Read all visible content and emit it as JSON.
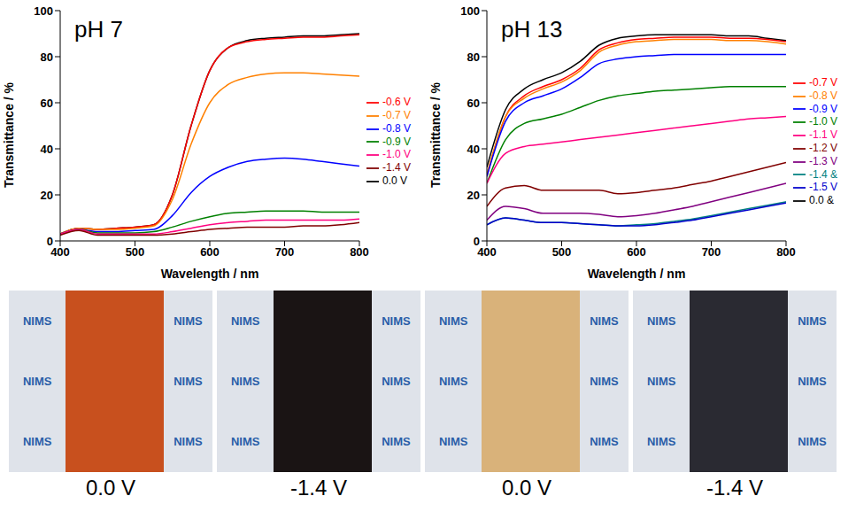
{
  "chart_data": [
    {
      "type": "line",
      "title": "pH 7",
      "x_label": "Wavelength / nm",
      "y_label": "Transmittance / %",
      "x": [
        400,
        425,
        450,
        475,
        500,
        525,
        550,
        575,
        600,
        625,
        650,
        675,
        700,
        725,
        750,
        775,
        800
      ],
      "xlim": [
        400,
        800
      ],
      "xticks": [
        400,
        500,
        600,
        700,
        800
      ],
      "ylim": [
        0,
        100
      ],
      "yticks": [
        0,
        20,
        40,
        60,
        80,
        100
      ],
      "grid": false,
      "legend": "right",
      "series": [
        {
          "name": "0.0 V",
          "color": "#000000",
          "values": [
            3,
            5.5,
            5,
            5.5,
            6,
            7,
            20,
            50,
            74,
            84,
            87,
            88,
            88.5,
            89,
            89,
            89.5,
            90
          ]
        },
        {
          "name": "-0.6 V",
          "color": "#ff0000",
          "values": [
            3,
            5.5,
            5,
            5.5,
            6,
            7,
            20,
            50,
            74,
            84,
            86.5,
            87.5,
            88,
            88.5,
            88.5,
            89,
            89.5
          ]
        },
        {
          "name": "-0.7 V",
          "color": "#ff8000",
          "values": [
            3,
            5.5,
            5,
            5,
            5.5,
            6.5,
            18,
            42,
            60,
            68,
            71,
            72.5,
            73,
            73,
            72.5,
            72,
            71.5
          ]
        },
        {
          "name": "-0.8 V",
          "color": "#0000ff",
          "values": [
            3,
            5,
            4,
            4,
            4.5,
            5,
            11,
            21,
            28,
            32,
            34.5,
            35.5,
            36,
            35.5,
            34.5,
            33.5,
            32.5
          ]
        },
        {
          "name": "-0.9 V",
          "color": "#008000",
          "values": [
            3,
            5,
            3.5,
            3.5,
            3.5,
            4,
            6,
            8.5,
            10.5,
            12,
            12.5,
            13,
            13,
            13,
            12.5,
            12.5,
            12.5
          ]
        },
        {
          "name": "-1.0 V",
          "color": "#ff0080",
          "values": [
            3,
            5,
            3,
            3,
            3,
            3,
            4,
            5.5,
            7,
            8,
            8.5,
            9,
            9,
            9,
            9,
            9,
            9.5
          ]
        },
        {
          "name": "-1.4 V",
          "color": "#800000",
          "values": [
            2.5,
            4.5,
            2.5,
            2.5,
            2.5,
            2.5,
            3,
            4,
            5,
            5.5,
            6,
            6,
            6,
            6.5,
            6.5,
            7,
            8
          ]
        }
      ]
    },
    {
      "type": "line",
      "title": "pH 13",
      "x_label": "Wavelength / nm",
      "y_label": "Transmittance / %",
      "x": [
        400,
        425,
        450,
        475,
        500,
        525,
        550,
        575,
        600,
        625,
        650,
        675,
        700,
        725,
        750,
        775,
        800
      ],
      "xlim": [
        400,
        800
      ],
      "xticks": [
        400,
        500,
        600,
        700,
        800
      ],
      "ylim": [
        0,
        100
      ],
      "yticks": [
        0,
        20,
        40,
        60,
        80,
        100
      ],
      "grid": false,
      "legend": "right",
      "series": [
        {
          "name": "0.0 &",
          "color": "#000000",
          "values": [
            32,
            57,
            66,
            70,
            73,
            78,
            85,
            88,
            89,
            89.5,
            89.5,
            89.5,
            89.5,
            89,
            89,
            88,
            87
          ]
        },
        {
          "name": "-0.7 V",
          "color": "#ff0000",
          "values": [
            28,
            54,
            63,
            67,
            70,
            75,
            83,
            86,
            87.5,
            88,
            88.5,
            88.5,
            88.5,
            88,
            88,
            87.5,
            86.5
          ]
        },
        {
          "name": "-0.8 V",
          "color": "#ff8000",
          "values": [
            29,
            54,
            62,
            66,
            69,
            74,
            82,
            85,
            86.5,
            87,
            87.5,
            87.5,
            87.5,
            87,
            87,
            86.5,
            85.5
          ]
        },
        {
          "name": "-0.9 V",
          "color": "#0000ff",
          "values": [
            28,
            52,
            60,
            63,
            66,
            71,
            77,
            79,
            80,
            80.5,
            81,
            81,
            81,
            81,
            81,
            81,
            81
          ]
        },
        {
          "name": "-1.0 V",
          "color": "#008000",
          "values": [
            25,
            44,
            51,
            53,
            55,
            58,
            61,
            63,
            64,
            65,
            65.5,
            66,
            66.5,
            67,
            67,
            67,
            67
          ]
        },
        {
          "name": "-1.1 V",
          "color": "#ff0080",
          "values": [
            25,
            38,
            41,
            42,
            43,
            44,
            45,
            46,
            47,
            48,
            49,
            50,
            51,
            52,
            53,
            53.5,
            54
          ]
        },
        {
          "name": "-1.2 V",
          "color": "#800000",
          "values": [
            15,
            23,
            24,
            22,
            22,
            22,
            22,
            20.5,
            21,
            22,
            23,
            24.5,
            26,
            28,
            30,
            32,
            34
          ]
        },
        {
          "name": "-1.3 V",
          "color": "#800080",
          "values": [
            9,
            15,
            14,
            12,
            12,
            12,
            11.5,
            10.5,
            11,
            12,
            13.5,
            15,
            17,
            19,
            21,
            23,
            25
          ]
        },
        {
          "name": "-1.4 &",
          "color": "#008080",
          "values": [
            7,
            10,
            9,
            8,
            8,
            7.5,
            7,
            6.5,
            7,
            7.5,
            8.5,
            9.5,
            11,
            12.5,
            14,
            15.5,
            17
          ]
        },
        {
          "name": "-1.5 V",
          "color": "#0000cc",
          "values": [
            7,
            10,
            9,
            8,
            8,
            7.5,
            7,
            6.5,
            6.5,
            7,
            8,
            9,
            10.5,
            12,
            13.5,
            15,
            16.5
          ]
        }
      ]
    }
  ],
  "photos": [
    {
      "label": "0.0 V",
      "color": "#c8501e",
      "text": "NIMS"
    },
    {
      "label": "-1.4 V",
      "color": "#1a1414",
      "text": "NIMS"
    },
    {
      "label": "0.0 V",
      "color": "#d9b27a",
      "text": "NIMS"
    },
    {
      "label": "-1.4 V",
      "color": "#2a2a32",
      "text": "NIMS"
    }
  ]
}
